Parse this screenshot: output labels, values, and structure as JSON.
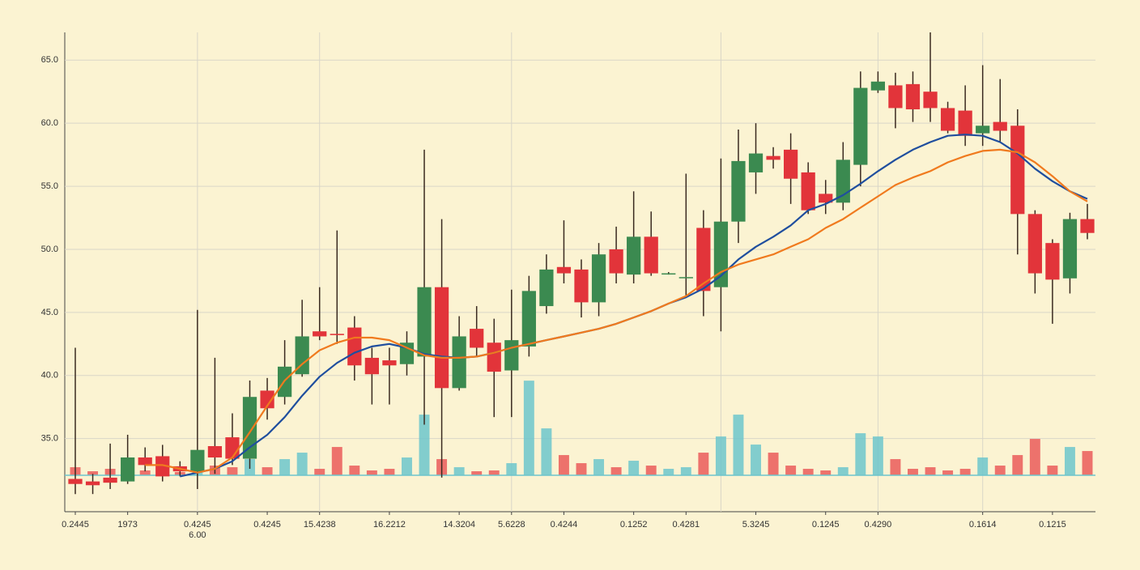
{
  "chart_data": {
    "type": "candlestick",
    "categories": [
      "0.2445",
      null,
      null,
      "1973",
      null,
      null,
      null,
      "0.4245",
      null,
      null,
      null,
      "0.4245",
      null,
      null,
      "15.4238",
      null,
      null,
      null,
      "16.2212",
      null,
      null,
      null,
      "14.3204",
      null,
      null,
      "5.6228",
      null,
      null,
      "0.4244",
      null,
      null,
      null,
      "0.1252",
      null,
      null,
      "0.4281",
      null,
      null,
      null,
      "5.3245",
      null,
      null,
      null,
      "0.1245",
      null,
      null,
      "0.4290",
      null,
      null,
      null,
      null,
      null,
      "0.1614",
      null,
      null,
      null,
      "0.1215",
      null,
      null
    ],
    "annotation": "6.00",
    "open": [
      31.8,
      31.6,
      31.9,
      31.6,
      33.5,
      33.6,
      32.8,
      32.4,
      34.4,
      35.1,
      33.4,
      38.8,
      38.3,
      40.1,
      43.5,
      43.3,
      43.8,
      41.4,
      41.2,
      40.9,
      41.5,
      47,
      39,
      43.7,
      42.6,
      40.4,
      42.3,
      45.5,
      48.6,
      48.4,
      45.8,
      50,
      48,
      51,
      48.1,
      47.8,
      51.7,
      47,
      52.2,
      56.1,
      57.4,
      57.9,
      56.1,
      54.4,
      53.7,
      56.7,
      62.6,
      63,
      63.1,
      62.5,
      61.2,
      61,
      59.2,
      60.1,
      59.8,
      52.8,
      50.5,
      47.7,
      52.4
    ],
    "high": [
      42.2,
      32.2,
      34.6,
      35.3,
      34.3,
      34.5,
      33.2,
      45.2,
      41.4,
      37,
      39.6,
      39.8,
      42.8,
      46,
      47,
      51.5,
      44.7,
      42.2,
      42.2,
      43.5,
      57.9,
      52.4,
      44.7,
      45.5,
      44.5,
      46.8,
      47.9,
      49.6,
      52.3,
      49.2,
      50.5,
      51.8,
      54.6,
      53,
      48.2,
      56,
      53.1,
      57.2,
      59.5,
      60,
      58.1,
      59.2,
      56.9,
      55.5,
      58.5,
      64.1,
      64.1,
      64,
      64.1,
      67.2,
      61.7,
      63,
      64.6,
      63.5,
      61.1,
      53.1,
      50.8,
      52.9,
      53.6
    ],
    "low": [
      30.6,
      30.6,
      31,
      31.4,
      32.4,
      31.6,
      32,
      31,
      32.2,
      32.9,
      32.6,
      36.5,
      37.7,
      39.9,
      42.8,
      42.5,
      39.6,
      37.7,
      37.7,
      40,
      36.1,
      31.9,
      38.8,
      41.5,
      36.7,
      36.7,
      41.5,
      44.9,
      47.3,
      44.6,
      44.7,
      47.3,
      47.3,
      47.9,
      48,
      46.3,
      44.7,
      43.5,
      50.5,
      54.4,
      56.4,
      53.6,
      52.8,
      52.8,
      53.1,
      55,
      62.4,
      59.6,
      60.1,
      60.1,
      59.2,
      58.2,
      58.2,
      58.5,
      49.6,
      46.5,
      44.1,
      46.5,
      50.8
    ],
    "close": [
      31.4,
      31.3,
      31.5,
      33.5,
      32.9,
      32,
      32.4,
      34.1,
      33.5,
      33.4,
      38.3,
      37.4,
      40.7,
      43.1,
      43.1,
      43.2,
      40.8,
      40.1,
      40.8,
      42.6,
      47,
      39,
      43.1,
      42.2,
      40.3,
      42.8,
      46.7,
      48.4,
      48.1,
      45.8,
      49.6,
      48.1,
      51,
      48.1,
      48.1,
      47.8,
      46.7,
      52.2,
      57,
      57.6,
      57.1,
      55.6,
      53.1,
      53.7,
      57.1,
      62.8,
      63.3,
      61.2,
      61.1,
      61.2,
      59.4,
      59,
      59.8,
      59.4,
      52.8,
      48.1,
      47.6,
      52.4,
      51.3
    ],
    "up_color": "#3b8a50",
    "down_color": "#e2343a",
    "series": [
      {
        "color": "#1f4e9e",
        "values": [
          null,
          null,
          null,
          null,
          null,
          null,
          32.0,
          32.3,
          32.6,
          33.2,
          34.3,
          35.3,
          36.7,
          38.4,
          39.9,
          41.0,
          41.8,
          42.3,
          42.5,
          42.2,
          41.7,
          41.5,
          41.4,
          41.5,
          41.8,
          42.2,
          42.5,
          42.8,
          43.1,
          43.4,
          43.7,
          44.1,
          44.6,
          45.1,
          45.7,
          46.2,
          46.9,
          47.9,
          49.2,
          50.2,
          51.0,
          51.9,
          53.1,
          53.6,
          54.3,
          55.2,
          56.2,
          57.1,
          57.9,
          58.5,
          59.0,
          59.1,
          59.0,
          58.5,
          57.6,
          56.4,
          55.4,
          54.6,
          54.0
        ]
      },
      {
        "color": "#f07a1e",
        "values": [
          null,
          null,
          null,
          null,
          32.9,
          32.9,
          32.6,
          32.3,
          32.6,
          33.5,
          35.5,
          37.6,
          39.6,
          40.9,
          42.0,
          42.6,
          43.0,
          43.0,
          42.8,
          42.2,
          41.6,
          41.4,
          41.4,
          41.5,
          41.8,
          42.2,
          42.5,
          42.8,
          43.1,
          43.4,
          43.7,
          44.1,
          44.6,
          45.1,
          45.7,
          46.3,
          47.3,
          48.2,
          48.8,
          49.2,
          49.6,
          50.2,
          50.8,
          51.7,
          52.4,
          53.3,
          54.2,
          55.1,
          55.7,
          56.2,
          56.9,
          57.4,
          57.8,
          57.9,
          57.7,
          56.9,
          55.8,
          54.6,
          53.8
        ]
      }
    ],
    "volume": {
      "axis": "y2",
      "up_color": "#6cc5cc",
      "down_color": "#ea5a5a",
      "values": [
        2,
        1,
        1.6,
        2.4,
        1.2,
        1.6,
        0.8,
        3,
        2.4,
        2,
        4,
        2,
        4,
        5.6,
        1.6,
        7,
        2.4,
        1.2,
        1.6,
        4.4,
        15,
        4,
        2,
        1,
        1.2,
        3,
        23.4,
        11.6,
        5,
        3,
        4,
        2,
        3.6,
        2.4,
        1.6,
        2,
        5.6,
        9.6,
        15,
        7.6,
        5.6,
        2.4,
        1.6,
        1.2,
        2,
        10.4,
        9.6,
        4,
        1.6,
        2,
        1.2,
        1.6,
        4.4,
        2.4,
        5,
        9,
        2.4,
        7,
        6
      ]
    },
    "ylim": [
      29.2,
      67.2
    ],
    "yticks": [
      {
        "value": 35,
        "label": "35.0"
      },
      {
        "value": 40,
        "label": "40.0"
      },
      {
        "value": 45,
        "label": "45.0"
      },
      {
        "value": 50,
        "label": "50.0"
      },
      {
        "value": 55,
        "label": "55.0"
      },
      {
        "value": 60,
        "label": "60.0"
      },
      {
        "value": 65,
        "label": "65.0"
      }
    ],
    "y2lim": [
      -9,
      109.5
    ],
    "grid": true
  }
}
